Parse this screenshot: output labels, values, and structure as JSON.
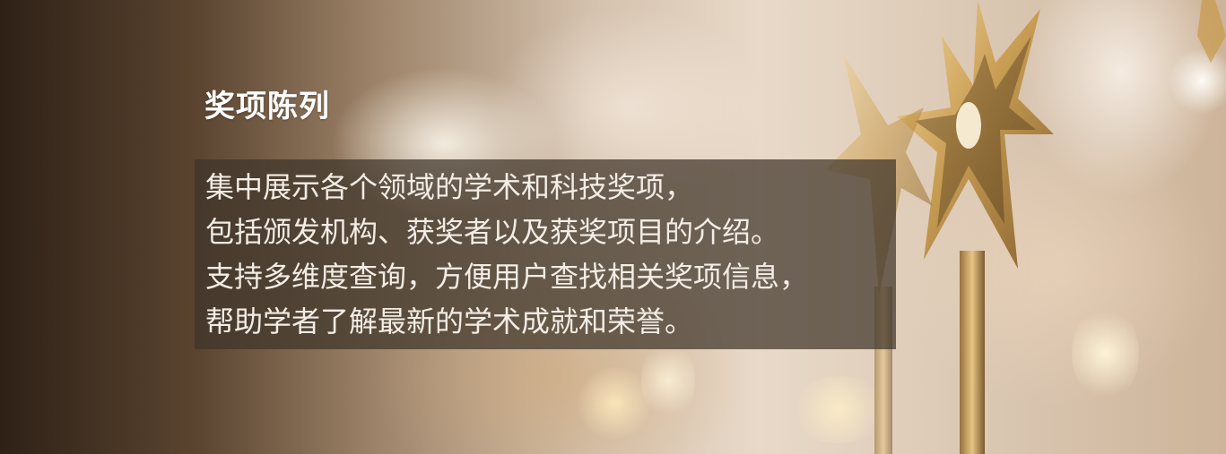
{
  "banner": {
    "title": "奖项陈列",
    "description": [
      "集中展示各个领域的学术和科技奖项，",
      "包括颁发机构、获奖者以及获奖项目的介绍。",
      "支持多维度查询，方便用户查找相关奖项信息，",
      "帮助学者了解最新的学术成就和荣誉。"
    ]
  },
  "colors": {
    "title_text": "#ffffff",
    "description_text": "#f3ede6",
    "overlay": "#3e342a",
    "gold": "#c89a4a"
  },
  "icons": {
    "background": "golden-star-trophy-bokeh"
  }
}
